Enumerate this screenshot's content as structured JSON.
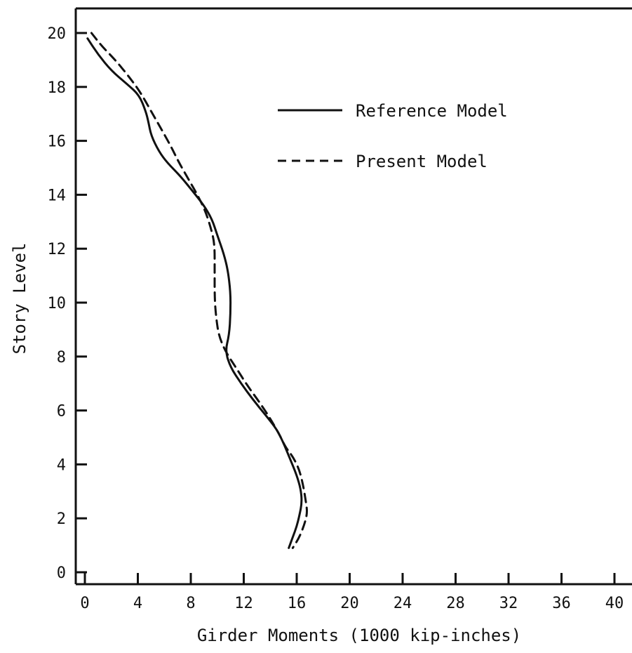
{
  "chart_data": {
    "type": "line",
    "title": "",
    "xlabel": "Girder Moments (1000 kip-inches)",
    "ylabel": "Story Level",
    "xlim": [
      0,
      40
    ],
    "ylim": [
      0,
      20
    ],
    "xticks": [
      "0",
      "4",
      "8",
      "12",
      "16",
      "20",
      "24",
      "28",
      "32",
      "36",
      "40"
    ],
    "yticks": [
      "0",
      "2",
      "4",
      "6",
      "8",
      "10",
      "12",
      "14",
      "16",
      "18",
      "20"
    ],
    "grid": false,
    "legend_position": "top-center",
    "series": [
      {
        "name": "Reference Model",
        "style": "solid",
        "color": "#111111",
        "points": [
          [
            0.2,
            19.8
          ],
          [
            1.0,
            19.2
          ],
          [
            2.0,
            18.6
          ],
          [
            3.2,
            18.1
          ],
          [
            4.1,
            17.7
          ],
          [
            4.6,
            17.1
          ],
          [
            4.8,
            16.7
          ],
          [
            5.0,
            16.2
          ],
          [
            5.6,
            15.6
          ],
          [
            6.2,
            15.2
          ],
          [
            7.2,
            14.7
          ],
          [
            8.2,
            14.1
          ],
          [
            9.0,
            13.6
          ],
          [
            9.6,
            13.1
          ],
          [
            10.0,
            12.5
          ],
          [
            10.5,
            11.8
          ],
          [
            10.8,
            11.2
          ],
          [
            11.0,
            10.4
          ],
          [
            11.0,
            9.6
          ],
          [
            10.9,
            8.8
          ],
          [
            10.6,
            8.2
          ],
          [
            11.0,
            7.6
          ],
          [
            11.8,
            7.0
          ],
          [
            12.7,
            6.4
          ],
          [
            13.7,
            5.8
          ],
          [
            14.5,
            5.3
          ],
          [
            15.0,
            4.8
          ],
          [
            15.5,
            4.2
          ],
          [
            16.0,
            3.6
          ],
          [
            16.3,
            3.1
          ],
          [
            16.4,
            2.6
          ],
          [
            16.2,
            2.1
          ],
          [
            16.0,
            1.7
          ],
          [
            15.7,
            1.3
          ],
          [
            15.4,
            0.9
          ]
        ]
      },
      {
        "name": "Present Model",
        "style": "dashed",
        "color": "#111111",
        "points": [
          [
            0.5,
            20.0
          ],
          [
            1.3,
            19.5
          ],
          [
            2.3,
            19.0
          ],
          [
            3.3,
            18.4
          ],
          [
            4.2,
            17.8
          ],
          [
            5.0,
            17.1
          ],
          [
            5.7,
            16.5
          ],
          [
            6.5,
            15.8
          ],
          [
            7.1,
            15.2
          ],
          [
            7.8,
            14.6
          ],
          [
            8.5,
            14.0
          ],
          [
            9.1,
            13.4
          ],
          [
            9.5,
            12.8
          ],
          [
            9.8,
            12.2
          ],
          [
            9.8,
            11.2
          ],
          [
            9.8,
            10.2
          ],
          [
            9.9,
            9.5
          ],
          [
            10.1,
            8.8
          ],
          [
            10.6,
            8.2
          ],
          [
            11.4,
            7.6
          ],
          [
            12.3,
            6.9
          ],
          [
            13.2,
            6.3
          ],
          [
            14.0,
            5.7
          ],
          [
            14.7,
            5.1
          ],
          [
            15.2,
            4.6
          ],
          [
            15.7,
            4.3
          ],
          [
            16.2,
            3.8
          ],
          [
            16.5,
            3.2
          ],
          [
            16.7,
            2.6
          ],
          [
            16.8,
            2.2
          ],
          [
            16.6,
            1.8
          ],
          [
            16.2,
            1.3
          ],
          [
            15.7,
            0.9
          ]
        ]
      }
    ]
  }
}
